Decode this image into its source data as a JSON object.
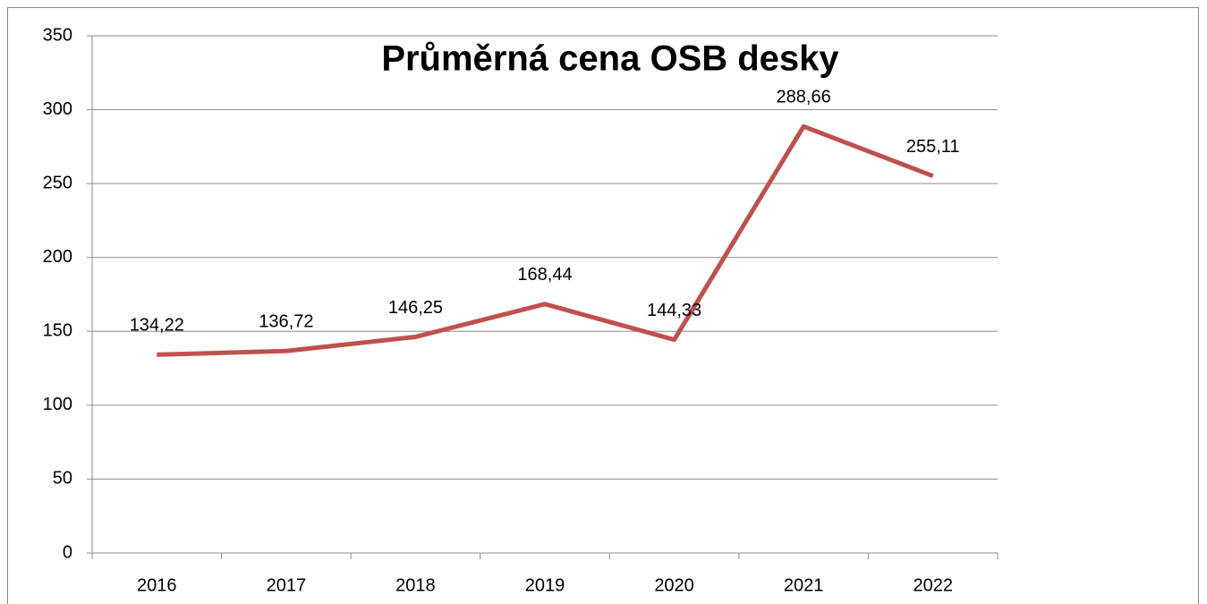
{
  "chart_data": {
    "type": "line",
    "title": "Průměrná cena OSB desky",
    "categories": [
      "2016",
      "2017",
      "2018",
      "2019",
      "2020",
      "2021",
      "2022"
    ],
    "series": [
      {
        "name": "Průměrná cena OSB desky",
        "color": "#c0504d",
        "values": [
          134.22,
          136.72,
          146.25,
          168.44,
          144.33,
          288.66,
          255.11
        ],
        "value_labels": [
          "134,22",
          "136,72",
          "146,25",
          "168,44",
          "144,33",
          "288,66",
          "255,11"
        ]
      }
    ],
    "ylim": [
      0,
      350
    ],
    "yticks": [
      0,
      50,
      100,
      150,
      200,
      250,
      300,
      350
    ],
    "grid": true,
    "legend": false
  }
}
